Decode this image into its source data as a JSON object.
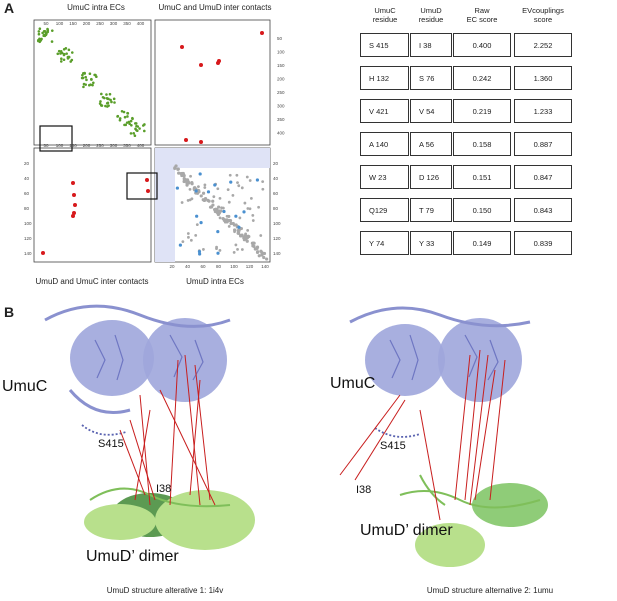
{
  "panel_a": {
    "letter": "A",
    "matrix": {
      "title_top_left": "UmuC intra ECs",
      "title_top_right": "UmuC and UmuD inter contacts",
      "title_bottom_left": "UmuD and UmuC inter contacts",
      "title_bottom_right": "UmuD intra ECs",
      "ticks_umuc": [
        "50",
        "100",
        "150",
        "200",
        "250",
        "300",
        "350",
        "400"
      ],
      "ticks_umuc_vertical": [
        "50",
        "100",
        "150",
        "200",
        "250",
        "300",
        "350",
        "400"
      ],
      "ticks_umud": [
        "20",
        "40",
        "60",
        "80",
        "100",
        "120",
        "140"
      ],
      "ticks_umud_vertical": [
        "20",
        "40",
        "60",
        "80",
        "100",
        "120",
        "140"
      ]
    },
    "table": {
      "headers": [
        "UmuC residue",
        "UmuD residue",
        "Raw EC score",
        "EVcouplings score"
      ],
      "header_lines": [
        [
          "UmuC",
          "residue"
        ],
        [
          "UmuD",
          "residue"
        ],
        [
          "Raw",
          "EC score"
        ],
        [
          "EVcouplings",
          "score"
        ]
      ],
      "rows": [
        [
          "S 415",
          "I 38",
          "0.400",
          "2.252"
        ],
        [
          "H 132",
          "S 76",
          "0.242",
          "1.360"
        ],
        [
          "V 421",
          "V 54",
          "0.219",
          "1.233"
        ],
        [
          "A 140",
          "A 56",
          "0.158",
          "0.887"
        ],
        [
          "W 23",
          "D 126",
          "0.151",
          "0.847"
        ],
        [
          "Q129",
          "T 79",
          "0.150",
          "0.843"
        ],
        [
          "Y 74",
          "Y 33",
          "0.149",
          "0.839"
        ]
      ]
    }
  },
  "panel_b": {
    "letter": "B",
    "left": {
      "umuc_label": "UmuC",
      "residue_c": "S415",
      "residue_d": "I38",
      "dimer_label": "UmuD’ dimer",
      "caption": "UmuD structure alterative 1: 1i4v"
    },
    "right": {
      "umuc_label": "UmuC",
      "residue_c": "S415",
      "residue_d": "I38",
      "dimer_label": "UmuD’ dimer",
      "caption": "UmuD structure alternative 2: 1umu"
    }
  },
  "colors": {
    "green_ec": "#5a9e2a",
    "red_contact": "#d7191c",
    "grey_ec": "#a8a8a8",
    "blue_ec": "#4a90d0",
    "highlight_bg": "#dfe3f6",
    "protein_umuc": "#9fa6dc",
    "protein_umud_light": "#b8e08c",
    "protein_umud_dark": "#5c9a52",
    "contact_line": "#c81e1e"
  }
}
